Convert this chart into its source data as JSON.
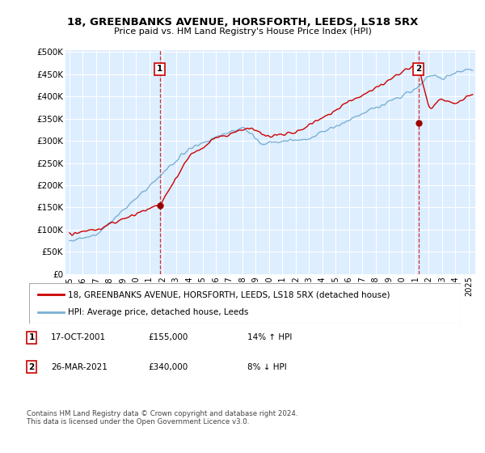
{
  "title_line1": "18, GREENBANKS AVENUE, HORSFORTH, LEEDS, LS18 5RX",
  "title_line2": "Price paid vs. HM Land Registry's House Price Index (HPI)",
  "ylabel_ticks": [
    "£0",
    "£50K",
    "£100K",
    "£150K",
    "£200K",
    "£250K",
    "£300K",
    "£350K",
    "£400K",
    "£450K",
    "£500K"
  ],
  "ytick_values": [
    0,
    50000,
    100000,
    150000,
    200000,
    250000,
    300000,
    350000,
    400000,
    450000,
    500000
  ],
  "ylim": [
    0,
    505000
  ],
  "xlim_start": 1994.7,
  "xlim_end": 2025.5,
  "xtick_years": [
    1995,
    1996,
    1997,
    1998,
    1999,
    2000,
    2001,
    2002,
    2003,
    2004,
    2005,
    2006,
    2007,
    2008,
    2009,
    2010,
    2011,
    2012,
    2013,
    2014,
    2015,
    2016,
    2017,
    2018,
    2019,
    2020,
    2021,
    2022,
    2023,
    2024,
    2025
  ],
  "sale1_x": 2001.79,
  "sale1_y": 155000,
  "sale1_label": "1",
  "sale2_x": 2021.23,
  "sale2_y": 340000,
  "sale2_label": "2",
  "line1_color": "#cc0000",
  "line2_color": "#7ab0d4",
  "plot_bg_color": "#ddeeff",
  "sale_marker_color": "#990000",
  "dashed_line_color": "#cc0000",
  "grid_color": "#ffffff",
  "bg_color": "#ffffff",
  "legend1_label": "18, GREENBANKS AVENUE, HORSFORTH, LEEDS, LS18 5RX (detached house)",
  "legend2_label": "HPI: Average price, detached house, Leeds",
  "table_rows": [
    {
      "num": "1",
      "date": "17-OCT-2001",
      "price": "£155,000",
      "hpi": "14% ↑ HPI"
    },
    {
      "num": "2",
      "date": "26-MAR-2021",
      "price": "£340,000",
      "hpi": "8% ↓ HPI"
    }
  ],
  "footnote": "Contains HM Land Registry data © Crown copyright and database right 2024.\nThis data is licensed under the Open Government Licence v3.0."
}
